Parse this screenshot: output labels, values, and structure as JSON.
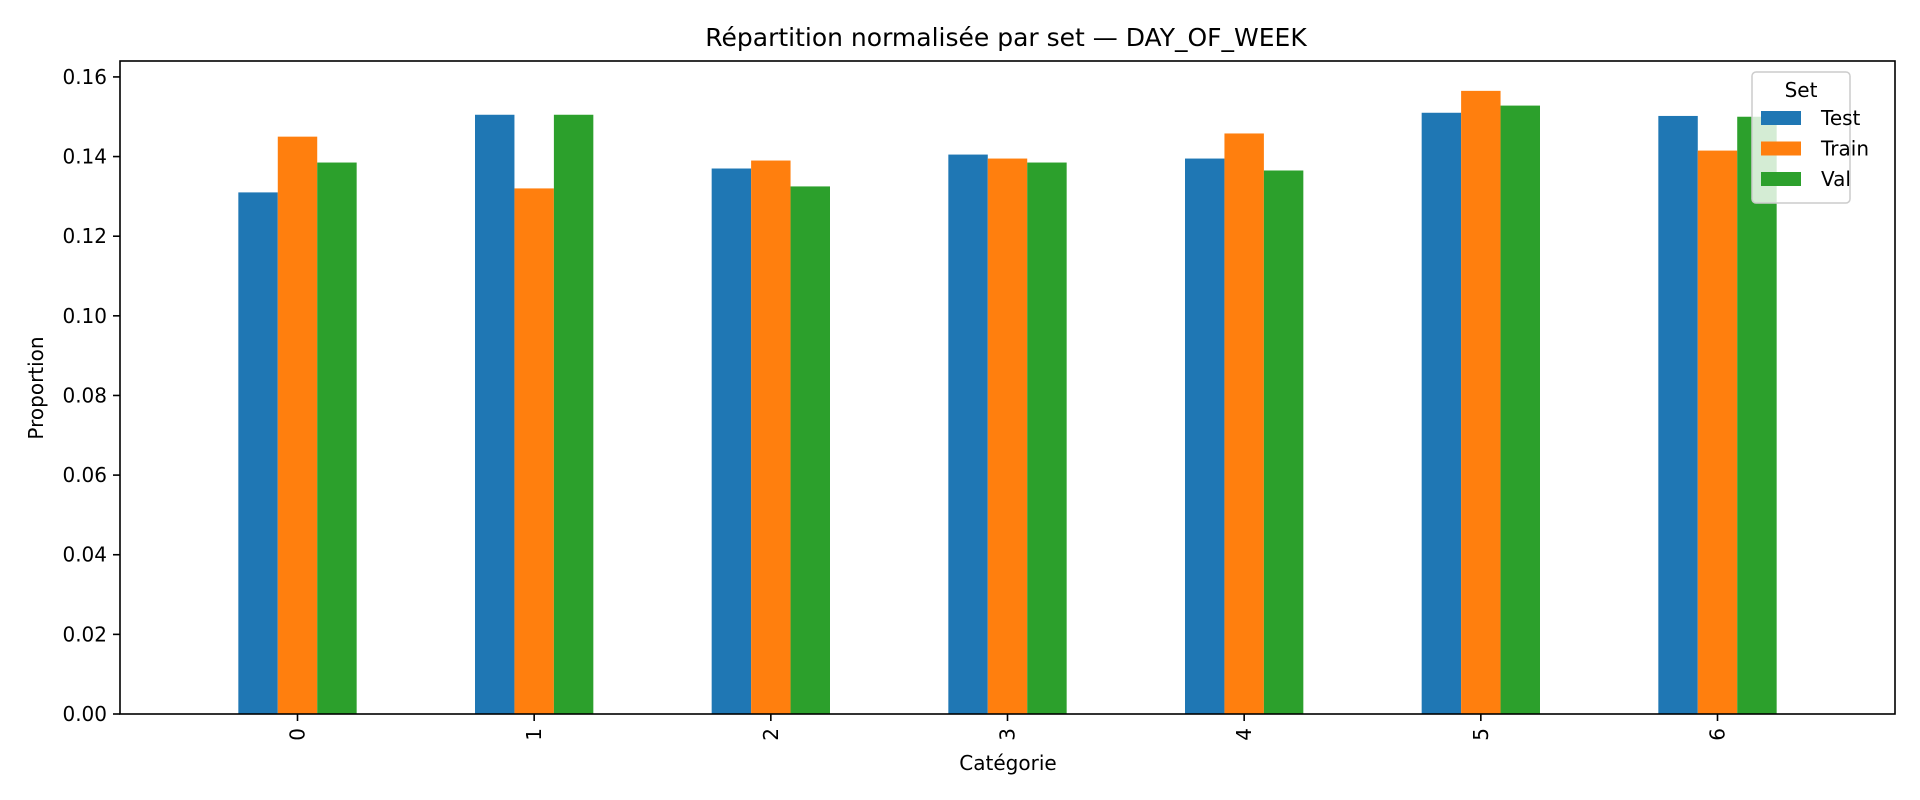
{
  "chart_data": {
    "type": "bar",
    "title": "Répartition normalisée par set — DAY_OF_WEEK",
    "xlabel": "Catégorie",
    "ylabel": "Proportion",
    "categories": [
      "0",
      "1",
      "2",
      "3",
      "4",
      "5",
      "6"
    ],
    "ylim": [
      0,
      0.164
    ],
    "yticks": [
      "0.00",
      "0.02",
      "0.04",
      "0.06",
      "0.08",
      "0.10",
      "0.12",
      "0.14",
      "0.16"
    ],
    "grid": false,
    "legend": {
      "title": "Set",
      "placement": "top-right"
    },
    "series": [
      {
        "name": "Test",
        "color": "#1f77b4",
        "values": [
          0.131,
          0.1505,
          0.137,
          0.1405,
          0.1395,
          0.151,
          0.1502
        ]
      },
      {
        "name": "Train",
        "color": "#ff7f0e",
        "values": [
          0.145,
          0.132,
          0.139,
          0.1395,
          0.1458,
          0.1565,
          0.1415
        ]
      },
      {
        "name": "Val",
        "color": "#2ca02c",
        "values": [
          0.1385,
          0.1505,
          0.1325,
          0.1385,
          0.1365,
          0.1528,
          0.15
        ]
      }
    ]
  }
}
